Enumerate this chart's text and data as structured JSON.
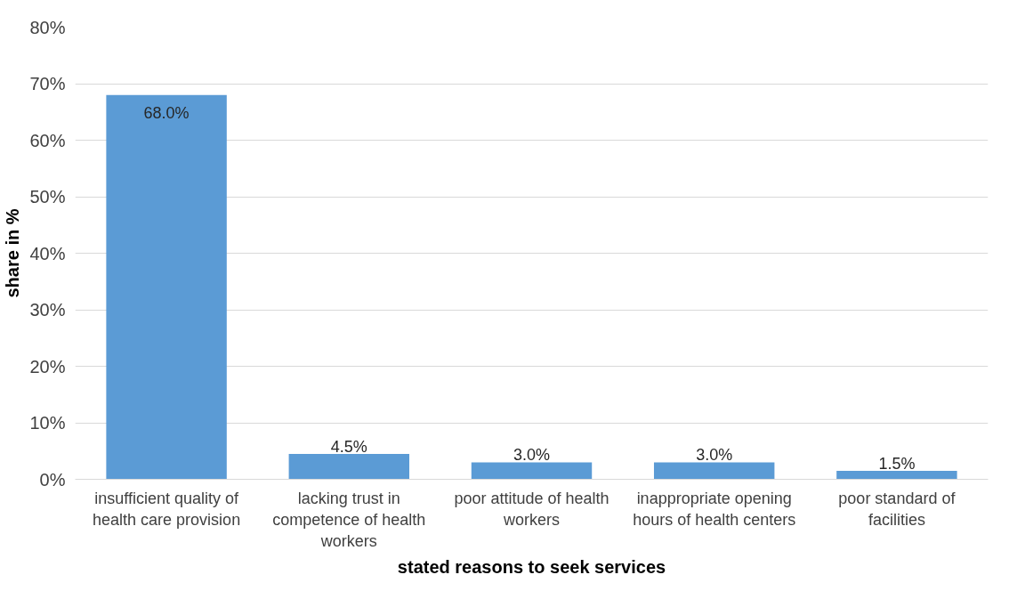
{
  "chart_data": {
    "type": "bar",
    "xlabel": "stated reasons to seek services",
    "ylabel": "share in %",
    "categories": [
      "insufficient quality of health care provision",
      "lacking trust in competence of health workers",
      "poor attitude of health workers",
      "inappropriate opening hours of health centers",
      "poor standard of facilities"
    ],
    "values": [
      68.0,
      4.5,
      3.0,
      3.0,
      1.5
    ],
    "value_labels": [
      "68.0%",
      "4.5%",
      "3.0%",
      "3.0%",
      "1.5%"
    ],
    "color": "#5b9bd5",
    "ylim": [
      0,
      80
    ],
    "yticks": [
      {
        "value": 0,
        "label": "0%"
      },
      {
        "value": 10,
        "label": "10%"
      },
      {
        "value": 20,
        "label": "20%"
      },
      {
        "value": 30,
        "label": "30%"
      },
      {
        "value": 40,
        "label": "40%"
      },
      {
        "value": 50,
        "label": "50%"
      },
      {
        "value": 60,
        "label": "60%"
      },
      {
        "value": 70,
        "label": "70%"
      },
      {
        "value": 80,
        "label": "80%"
      }
    ],
    "grid": "y"
  }
}
